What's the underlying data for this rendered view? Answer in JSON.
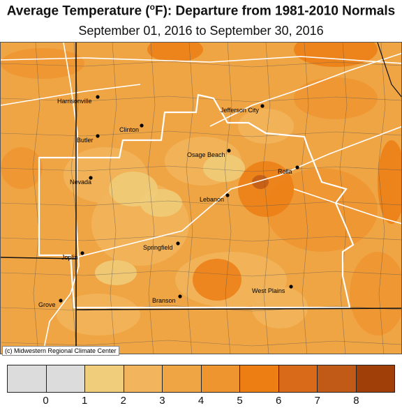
{
  "title": {
    "main": "Average Temperature (",
    "degree": "o",
    "unit_tail": "F): Departure from 1981-2010 Normals"
  },
  "subtitle": "September 01, 2016 to September 30, 2016",
  "credit": "(c) Midwestern Regional Climate Center",
  "cities": [
    {
      "name": "Harrisonville"
    },
    {
      "name": "Jefferson City"
    },
    {
      "name": "Clinton"
    },
    {
      "name": "Butler"
    },
    {
      "name": "Osage Beach"
    },
    {
      "name": "Rolla"
    },
    {
      "name": "Nevada"
    },
    {
      "name": "Lebanon"
    },
    {
      "name": "Springfield"
    },
    {
      "name": "Joplin"
    },
    {
      "name": "West Plains"
    },
    {
      "name": "Branson"
    },
    {
      "name": "Grove"
    }
  ],
  "legend": {
    "tick_labels": [
      "0",
      "1",
      "2",
      "3",
      "4",
      "5",
      "6",
      "7",
      "8"
    ],
    "colors": [
      "#dcdcdc",
      "#dcdcdc",
      "#f0cd7a",
      "#f2b45c",
      "#f0a544",
      "#ee9530",
      "#ec7e14",
      "#d86a1a",
      "#c05a16",
      "#a04008"
    ]
  },
  "map_colors": {
    "base": "#f0a544",
    "light": "#f2b45c",
    "lighter": "#f0cd7a",
    "dark": "#ee9530",
    "darker": "#ec7e14",
    "darkest": "#c05a16",
    "road": "#ffffff",
    "region_outline": "#ffffff",
    "county_line": "#555555",
    "state_line": "#111111"
  }
}
